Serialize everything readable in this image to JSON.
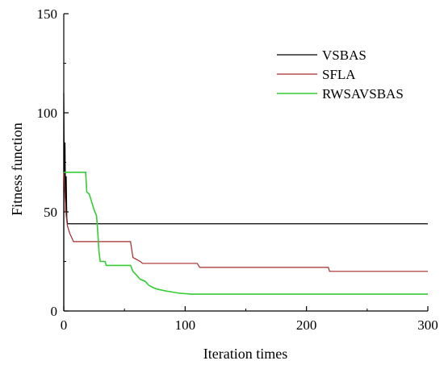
{
  "chart_data": {
    "type": "line",
    "xlabel": "Iteration times",
    "ylabel": "Fitness function",
    "xlim": [
      0,
      300
    ],
    "ylim": [
      0,
      150
    ],
    "x_ticks": [
      0,
      100,
      200,
      300
    ],
    "y_ticks": [
      0,
      50,
      100,
      150
    ],
    "x_tick_labels": [
      "0",
      "100",
      "200",
      "300"
    ],
    "y_tick_labels": [
      "0",
      "50",
      "100",
      "150"
    ],
    "grid": false,
    "legend_position": "top-right",
    "series": [
      {
        "name": "VSBAS",
        "color": "#000000",
        "points": [
          [
            0,
            0
          ],
          [
            0,
            110
          ],
          [
            0.5,
            60
          ],
          [
            1,
            85
          ],
          [
            1.5,
            50
          ],
          [
            2,
            68
          ],
          [
            2.5,
            47
          ],
          [
            3,
            44
          ],
          [
            300,
            44
          ]
        ]
      },
      {
        "name": "SFLA",
        "color": "#a52a2a",
        "points": [
          [
            0,
            70
          ],
          [
            1,
            58
          ],
          [
            2,
            48
          ],
          [
            3,
            43
          ],
          [
            5,
            39
          ],
          [
            8,
            35
          ],
          [
            55,
            35
          ],
          [
            57,
            27
          ],
          [
            60,
            26
          ],
          [
            63,
            25
          ],
          [
            65,
            24
          ],
          [
            110,
            24
          ],
          [
            112,
            22
          ],
          [
            218,
            22
          ],
          [
            219,
            20
          ],
          [
            300,
            20
          ]
        ]
      },
      {
        "name": "RWSAVSBAS",
        "color": "#33cc33",
        "points": [
          [
            0,
            70
          ],
          [
            18,
            70
          ],
          [
            19,
            60
          ],
          [
            21,
            59
          ],
          [
            23,
            55
          ],
          [
            25,
            51
          ],
          [
            27,
            48
          ],
          [
            28,
            40
          ],
          [
            29,
            30
          ],
          [
            30,
            25
          ],
          [
            34,
            25
          ],
          [
            35,
            23
          ],
          [
            55,
            23
          ],
          [
            57,
            20
          ],
          [
            60,
            18
          ],
          [
            63,
            16
          ],
          [
            67,
            15
          ],
          [
            70,
            13
          ],
          [
            73,
            12
          ],
          [
            77,
            11
          ],
          [
            85,
            10
          ],
          [
            95,
            9
          ],
          [
            105,
            8.5
          ],
          [
            300,
            8.5
          ]
        ]
      }
    ]
  }
}
